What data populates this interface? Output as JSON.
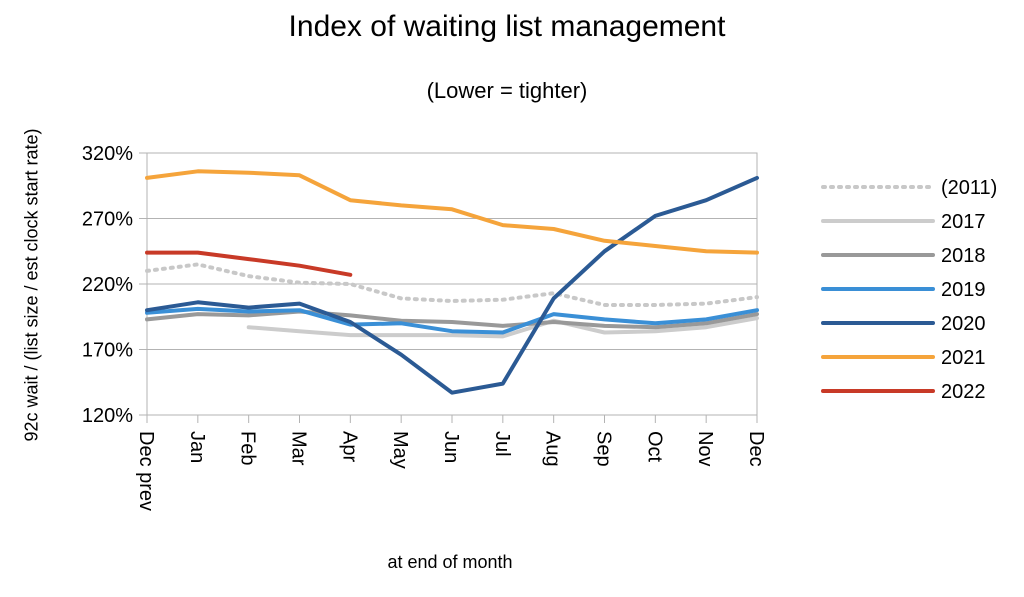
{
  "chart_data": {
    "type": "line",
    "title": "Index of waiting list management",
    "subtitle": "(Lower = tighter)",
    "ylabel": "92c wait / (list size / est clock start rate)",
    "xlabel": "at end of month",
    "ylim": [
      120,
      320
    ],
    "yticks": [
      120,
      170,
      220,
      270,
      320
    ],
    "ytick_format": "percent",
    "grid": "horizontal",
    "legend": "right",
    "categories": [
      "Dec prev",
      "Jan",
      "Feb",
      "Mar",
      "Apr",
      "May",
      "Jun",
      "Jul",
      "Aug",
      "Sep",
      "Oct",
      "Nov",
      "Dec"
    ],
    "series": [
      {
        "name": "(2011)",
        "color": "#c8c8c8",
        "dash": "dotted",
        "values": [
          230,
          235,
          226,
          221,
          220,
          209,
          207,
          208,
          213,
          204,
          204,
          205,
          210
        ]
      },
      {
        "name": "2017",
        "color": "#cccccc",
        "dash": "solid",
        "values": [
          null,
          null,
          187,
          184,
          181,
          181,
          181,
          180,
          192,
          183,
          184,
          187,
          194
        ]
      },
      {
        "name": "2018",
        "color": "#999999",
        "dash": "solid",
        "values": [
          193,
          197,
          196,
          199,
          196,
          192,
          191,
          188,
          191,
          188,
          187,
          190,
          197
        ]
      },
      {
        "name": "2019",
        "color": "#3a8fd6",
        "dash": "solid",
        "values": [
          198,
          201,
          199,
          200,
          189,
          190,
          184,
          183,
          197,
          193,
          190,
          193,
          200
        ]
      },
      {
        "name": "2020",
        "color": "#2b5a94",
        "dash": "solid",
        "values": [
          200,
          206,
          202,
          205,
          191,
          166,
          137,
          144,
          209,
          245,
          272,
          284,
          301
        ]
      },
      {
        "name": "2021",
        "color": "#f5a43b",
        "dash": "solid",
        "values": [
          301,
          306,
          305,
          303,
          284,
          280,
          277,
          265,
          262,
          253,
          249,
          245,
          244
        ]
      },
      {
        "name": "2022",
        "color": "#c83a27",
        "dash": "solid",
        "values": [
          244,
          244,
          239,
          234,
          227,
          null,
          null,
          null,
          null,
          null,
          null,
          null,
          null
        ]
      }
    ]
  }
}
